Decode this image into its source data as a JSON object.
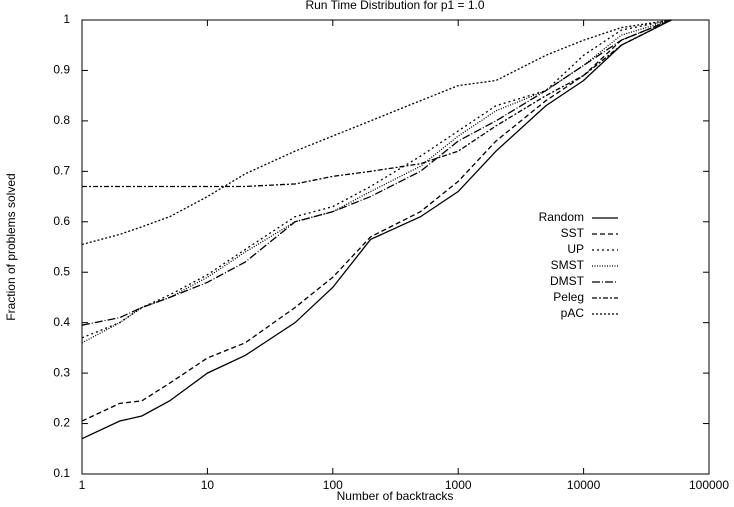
{
  "chart_data": {
    "type": "line",
    "title": "Run Time Distribution for p1 = 1.0",
    "x_label": "Number of backtracks",
    "y_label": "Fraction of problems solved",
    "x": [
      1,
      2,
      3,
      5,
      10,
      20,
      50,
      100,
      200,
      500,
      1000,
      2000,
      5000,
      10000,
      20000,
      50000
    ],
    "xscale": "log",
    "xlim": [
      1,
      100000
    ],
    "xticks": [
      1,
      10,
      100,
      1000,
      10000,
      100000
    ],
    "ylim": [
      0.1,
      1
    ],
    "yticks": [
      0.1,
      0.2,
      0.3,
      0.4,
      0.5,
      0.6,
      0.7,
      0.8,
      0.9,
      1
    ],
    "legend": "right",
    "series": [
      {
        "name": "Random",
        "color": "#000000",
        "dash": "none",
        "values": [
          0.17,
          0.205,
          0.215,
          0.245,
          0.3,
          0.335,
          0.4,
          0.47,
          0.565,
          0.61,
          0.66,
          0.74,
          0.83,
          0.88,
          0.95,
          1.0
        ]
      },
      {
        "name": "SST",
        "color": "#000000",
        "dash": "5,3",
        "values": [
          0.205,
          0.24,
          0.245,
          0.28,
          0.33,
          0.36,
          0.43,
          0.49,
          0.57,
          0.62,
          0.68,
          0.76,
          0.84,
          0.89,
          0.96,
          1.0
        ]
      },
      {
        "name": "UP",
        "color": "#000000",
        "dash": "2,3",
        "values": [
          0.37,
          0.4,
          0.43,
          0.455,
          0.495,
          0.545,
          0.61,
          0.63,
          0.67,
          0.73,
          0.78,
          0.83,
          0.86,
          0.93,
          0.98,
          1.0
        ]
      },
      {
        "name": "SMST",
        "color": "#000000",
        "dash": "1,1.5",
        "values": [
          0.36,
          0.4,
          0.43,
          0.45,
          0.49,
          0.54,
          0.6,
          0.62,
          0.66,
          0.71,
          0.77,
          0.82,
          0.86,
          0.91,
          0.97,
          1.0
        ]
      },
      {
        "name": "DMST",
        "color": "#000000",
        "dash": "8,2,1,2",
        "values": [
          0.395,
          0.41,
          0.43,
          0.45,
          0.48,
          0.52,
          0.6,
          0.62,
          0.65,
          0.7,
          0.76,
          0.8,
          0.86,
          0.91,
          0.96,
          1.0
        ]
      },
      {
        "name": "Peleg",
        "color": "#000000",
        "dash": "5,2,2,2",
        "values": [
          0.67,
          0.67,
          0.67,
          0.67,
          0.67,
          0.67,
          0.675,
          0.69,
          0.7,
          0.715,
          0.74,
          0.79,
          0.85,
          0.89,
          0.95,
          1.0
        ]
      },
      {
        "name": "pAC",
        "color": "#000000",
        "dash": "2,2",
        "values": [
          0.555,
          0.575,
          0.59,
          0.61,
          0.65,
          0.695,
          0.74,
          0.77,
          0.8,
          0.84,
          0.87,
          0.88,
          0.93,
          0.96,
          0.985,
          1.0
        ]
      }
    ]
  }
}
